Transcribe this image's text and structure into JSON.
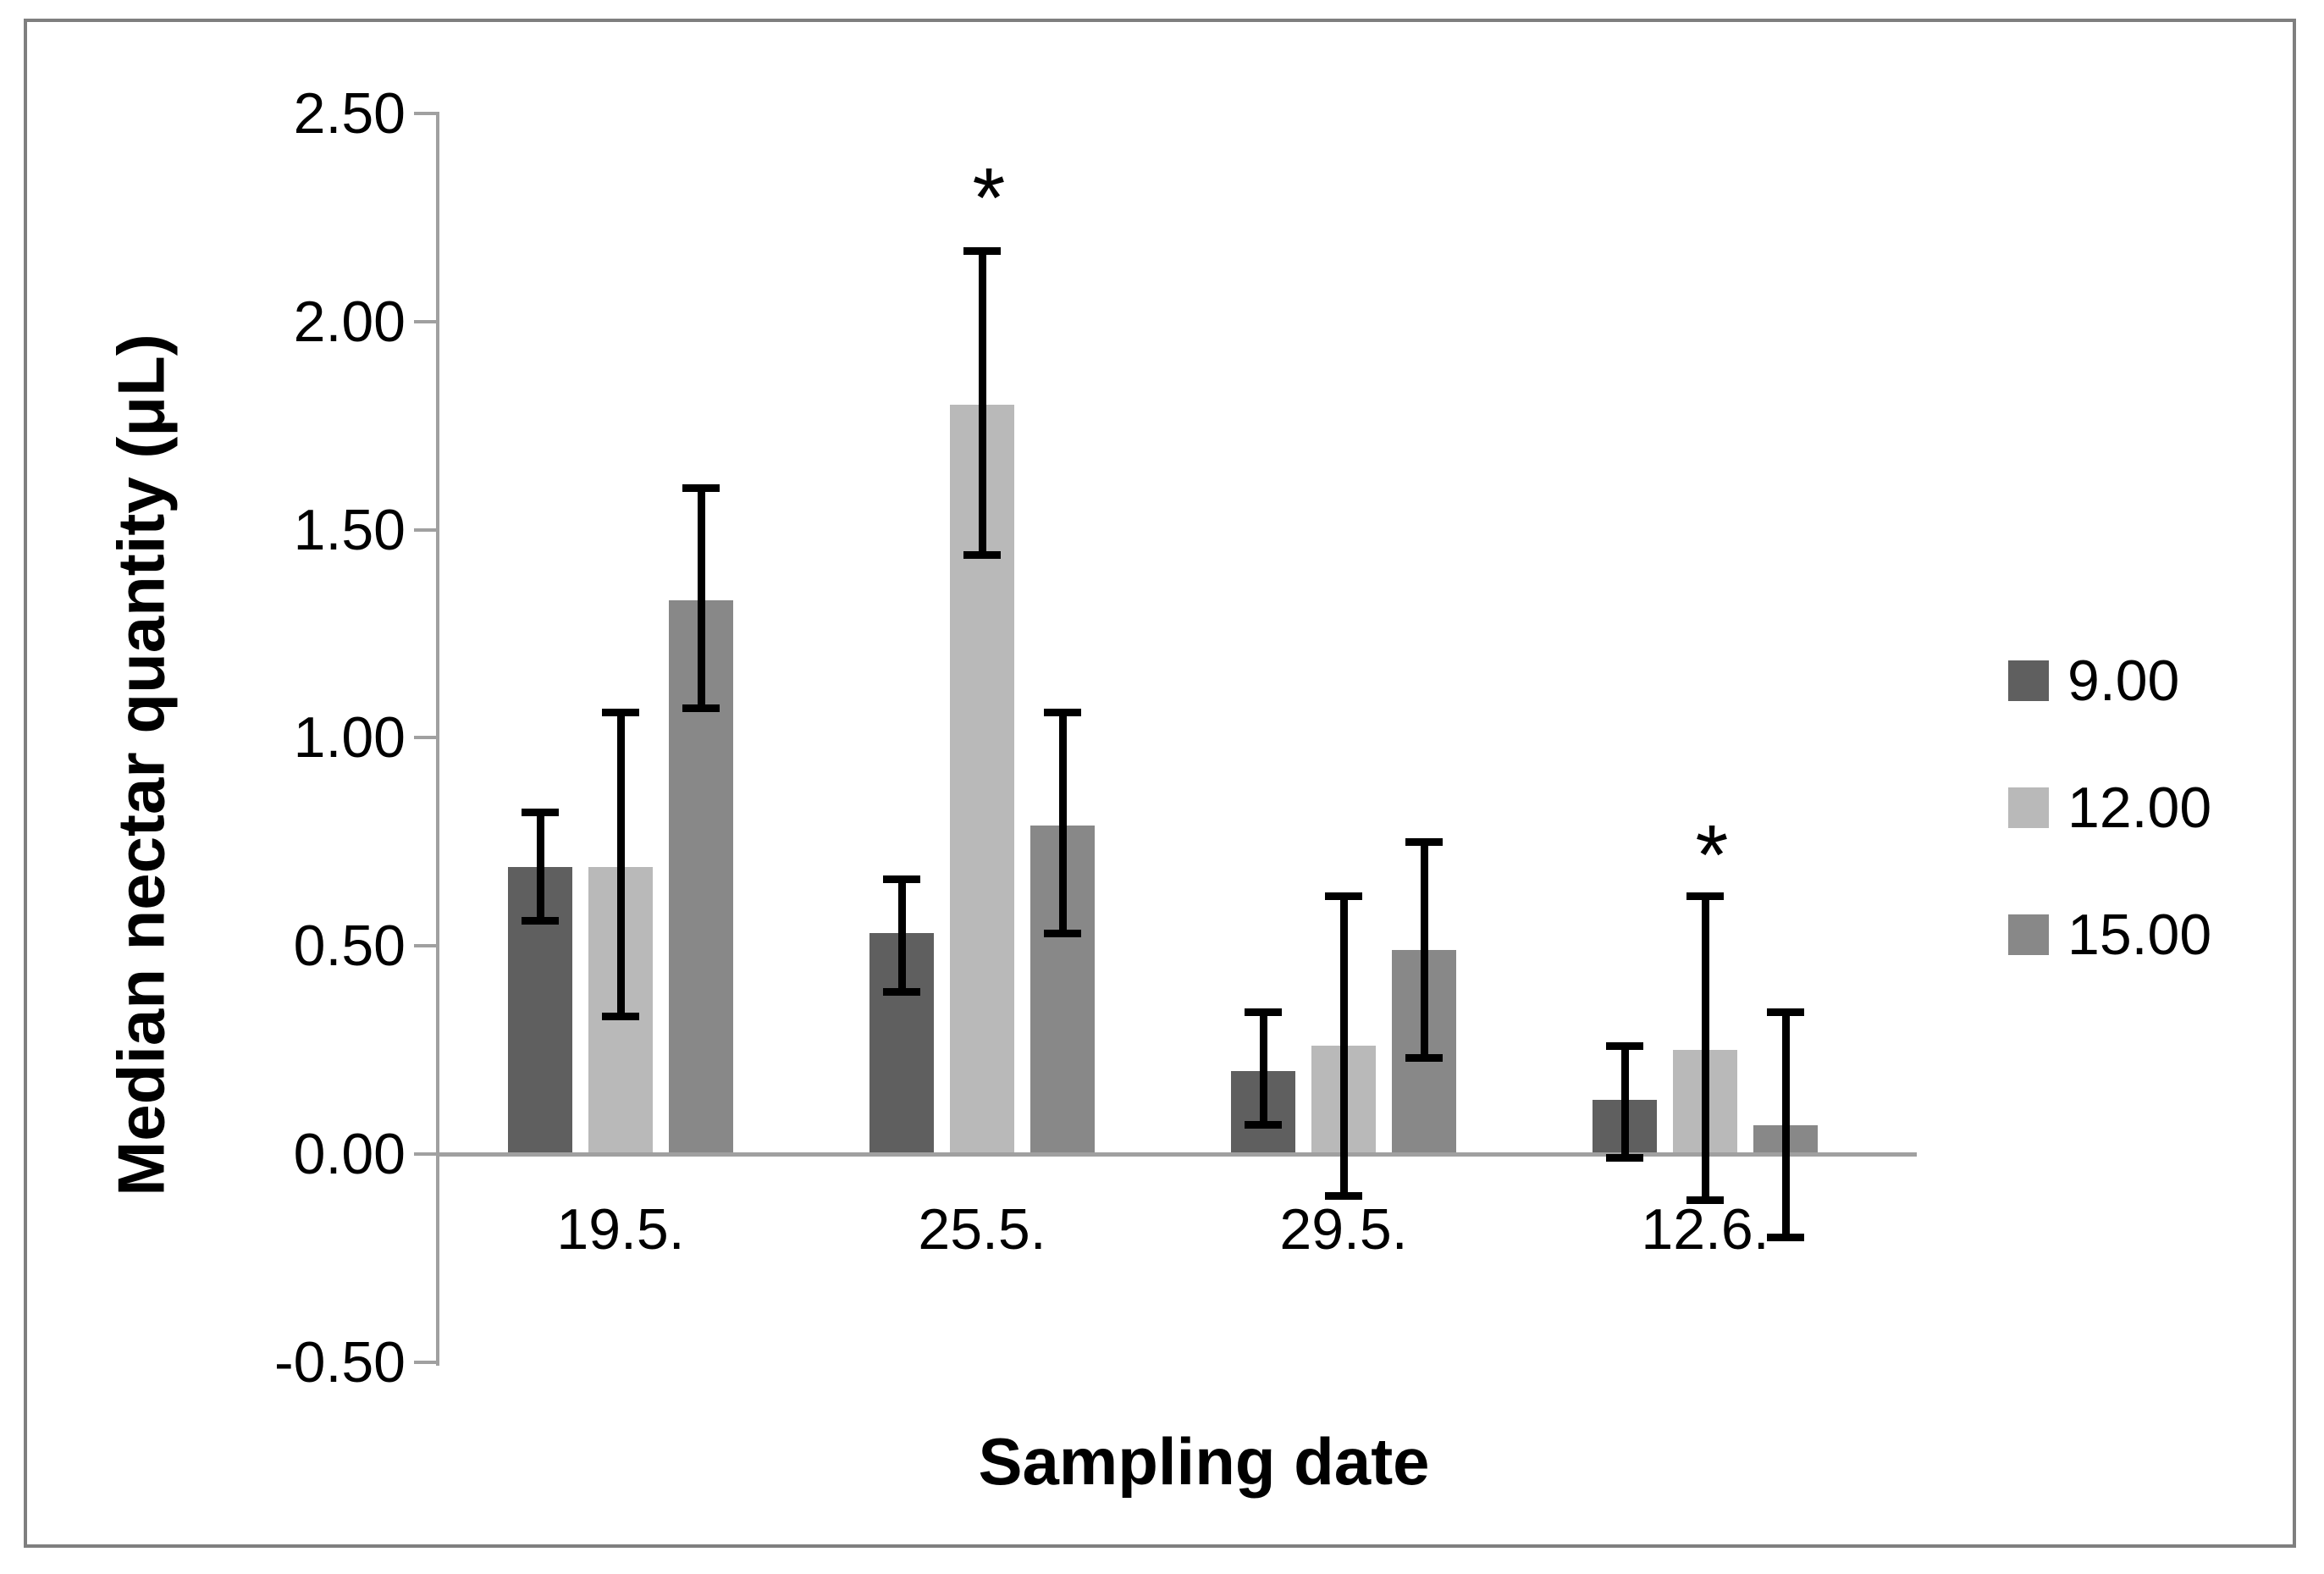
{
  "chart_data": {
    "type": "bar",
    "title": "",
    "xlabel": "Sampling date",
    "ylabel": "Median nectar quantity (μL)",
    "categories": [
      "19.5.",
      "25.5.",
      "29.5.",
      "12.6."
    ],
    "ylim": [
      -0.5,
      2.5
    ],
    "ytick_step": 0.5,
    "ytick_labels": [
      "2.50",
      "2.00",
      "1.50",
      "1.00",
      "0.50",
      "0.00",
      "-0.50"
    ],
    "grid": false,
    "legend_position": "right",
    "error_bars": true,
    "series": [
      {
        "name": "9.00",
        "color": "#5f5f5f",
        "values": [
          0.69,
          0.53,
          0.2,
          0.13
        ],
        "error_low": [
          0.56,
          0.39,
          0.07,
          -0.01
        ],
        "error_high": [
          0.82,
          0.66,
          0.34,
          0.26
        ]
      },
      {
        "name": "12.00",
        "color": "#b9b9b9",
        "values": [
          0.69,
          1.8,
          0.26,
          0.25
        ],
        "error_low": [
          0.33,
          1.44,
          -0.1,
          -0.11
        ],
        "error_high": [
          1.06,
          2.17,
          0.62,
          0.62
        ]
      },
      {
        "name": "15.00",
        "color": "#888888",
        "values": [
          1.33,
          0.79,
          0.49,
          0.07
        ],
        "error_low": [
          1.07,
          0.53,
          0.23,
          -0.2
        ],
        "error_high": [
          1.6,
          1.06,
          0.75,
          0.34
        ]
      }
    ],
    "annotations": [
      {
        "text": "*",
        "category_index": 1,
        "series_index": 1,
        "y": 2.33
      },
      {
        "text": "*",
        "category_index": 3,
        "series_index": 1,
        "y": 0.75
      }
    ],
    "axis_color": "#a0a0a0",
    "border_color": "#7f7f7f"
  }
}
